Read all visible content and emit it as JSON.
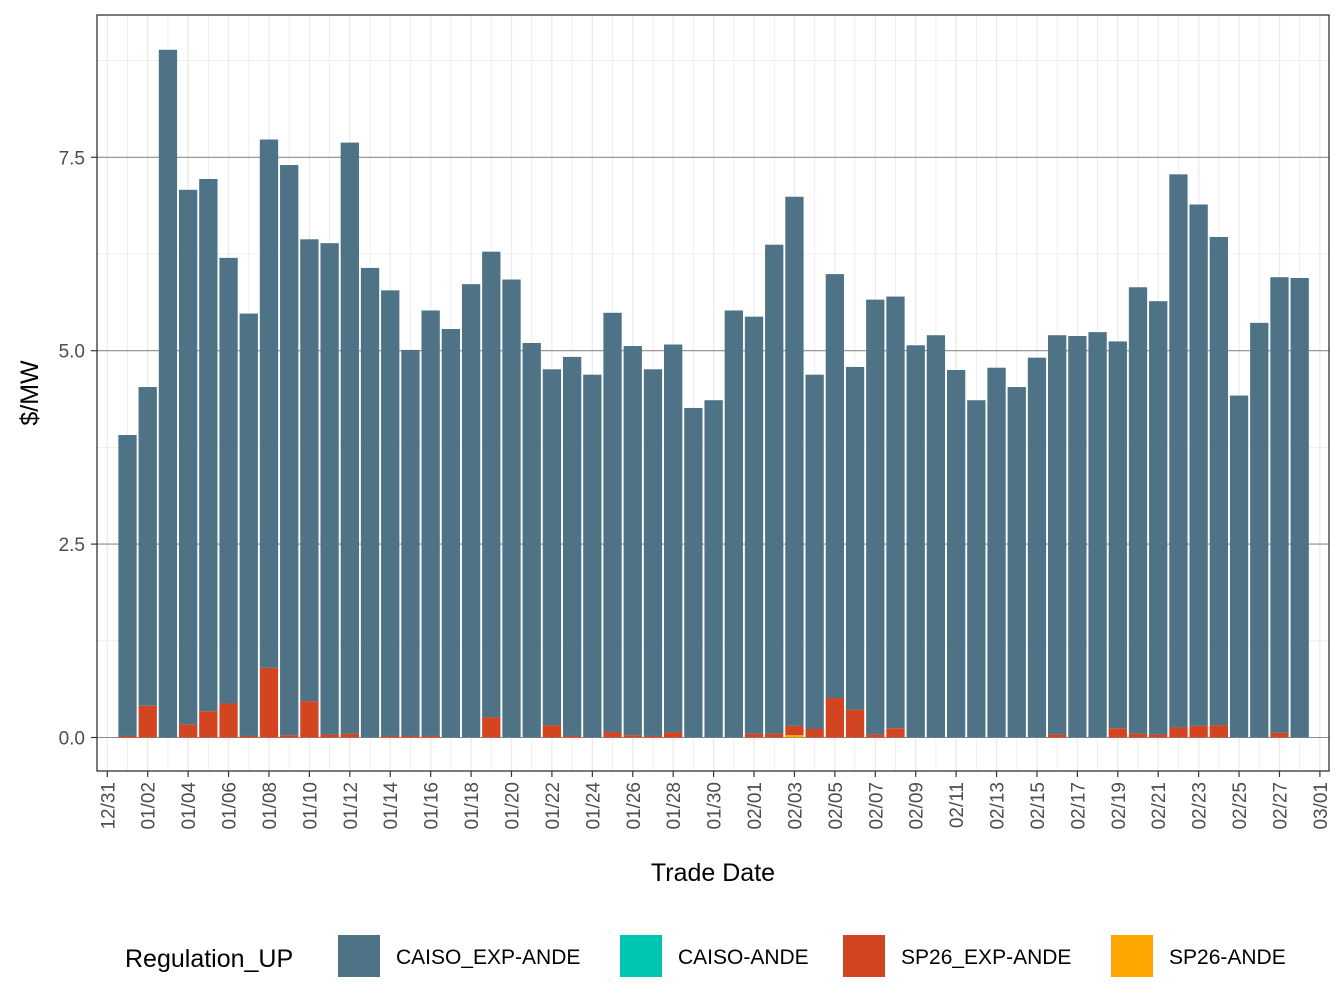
{
  "chart_data": {
    "type": "bar",
    "stacked": true,
    "xlabel": "Trade Date",
    "ylabel": "$/MW",
    "ylim": [
      -0.37,
      9.3
    ],
    "yticks": [
      0.0,
      2.5,
      5.0,
      7.5
    ],
    "ytick_labels": [
      "0.0",
      "2.5",
      "5.0",
      "7.5"
    ],
    "xticks": [
      "12/31",
      "01/02",
      "01/04",
      "01/06",
      "01/08",
      "01/10",
      "01/12",
      "01/14",
      "01/16",
      "01/18",
      "01/20",
      "01/22",
      "01/24",
      "01/26",
      "01/28",
      "01/30",
      "02/01",
      "02/03",
      "02/05",
      "02/07",
      "02/09",
      "02/11",
      "02/13",
      "02/15",
      "02/17",
      "02/19",
      "02/21",
      "02/23",
      "02/25",
      "02/27",
      "03/01"
    ],
    "grid": true,
    "legend_placement": "bottom",
    "legend": {
      "title": "Regulation_UP",
      "entries": [
        {
          "name": "CAISO_EXP-ANDE",
          "color": "#4e7387"
        },
        {
          "name": "CAISO-ANDE",
          "color": "#00c5b0"
        },
        {
          "name": "SP26_EXP-ANDE",
          "color": "#d24520"
        },
        {
          "name": "SP26-ANDE",
          "color": "#ffa500"
        }
      ]
    },
    "categories": [
      "01/01",
      "01/02",
      "01/03",
      "01/04",
      "01/05",
      "01/06",
      "01/07",
      "01/08",
      "01/09",
      "01/10",
      "01/11",
      "01/12",
      "01/13",
      "01/14",
      "01/15",
      "01/16",
      "01/17",
      "01/18",
      "01/19",
      "01/20",
      "01/21",
      "01/22",
      "01/23",
      "01/24",
      "01/25",
      "01/26",
      "01/27",
      "01/28",
      "01/29",
      "01/30",
      "01/31",
      "02/01",
      "02/02",
      "02/03",
      "02/04",
      "02/05",
      "02/06",
      "02/07",
      "02/08",
      "02/09",
      "02/10",
      "02/11",
      "02/12",
      "02/13",
      "02/14",
      "02/15",
      "02/16",
      "02/17",
      "02/18",
      "02/19",
      "02/20",
      "02/21",
      "02/22",
      "02/23",
      "02/24",
      "02/25",
      "02/26",
      "02/27",
      "02/28"
    ],
    "series": [
      {
        "name": "SP26-ANDE",
        "color": "#ffa500",
        "values": [
          0,
          0,
          0,
          0,
          0,
          0,
          0,
          0,
          0,
          0,
          0,
          0,
          0,
          0,
          0,
          0,
          0,
          0,
          0,
          0,
          0,
          0,
          0,
          0,
          0,
          0,
          0,
          0,
          0,
          0,
          0,
          0,
          0,
          0.03,
          0,
          0,
          0,
          0,
          0,
          0,
          0,
          0,
          0,
          0,
          0,
          0,
          0,
          0,
          0,
          0,
          0,
          0,
          0,
          0,
          0,
          0,
          0,
          0,
          0
        ]
      },
      {
        "name": "SP26_EXP-ANDE",
        "color": "#d24520",
        "values": [
          0.02,
          0.41,
          0,
          0.17,
          0.34,
          0.44,
          0.02,
          0.9,
          0.03,
          0.47,
          0.04,
          0.05,
          0,
          0.02,
          0.02,
          0.02,
          0,
          0,
          0.26,
          0,
          0,
          0.16,
          0.02,
          0,
          0.07,
          0.03,
          0.02,
          0.07,
          0,
          0,
          0,
          0.05,
          0.05,
          0.12,
          0.11,
          0.51,
          0.36,
          0.04,
          0.12,
          0,
          0,
          0,
          0,
          0,
          0,
          0,
          0.04,
          0,
          0,
          0.12,
          0.05,
          0.04,
          0.13,
          0.15,
          0.16,
          0,
          0,
          0.06,
          0
        ]
      },
      {
        "name": "CAISO-ANDE",
        "color": "#00c5b0",
        "values": [
          0,
          0,
          0,
          0,
          0,
          0,
          0,
          0,
          0,
          0,
          0,
          0,
          0,
          0,
          0,
          0,
          0,
          0,
          0,
          0,
          0,
          0,
          0,
          0,
          0,
          0,
          0,
          0,
          0,
          0,
          0,
          0,
          0,
          0,
          0,
          0,
          0,
          0,
          0,
          0,
          0,
          0,
          0,
          0,
          0,
          0,
          0,
          0,
          0,
          0,
          0,
          0,
          0,
          0,
          0,
          0,
          0,
          0,
          0
        ]
      },
      {
        "name": "CAISO_EXP-ANDE",
        "color": "#4e7387",
        "values": [
          3.89,
          4.12,
          8.89,
          6.91,
          6.88,
          5.76,
          5.46,
          6.83,
          7.37,
          5.97,
          6.35,
          7.64,
          6.07,
          5.76,
          4.99,
          5.5,
          5.28,
          5.86,
          6.02,
          5.92,
          5.1,
          4.6,
          4.9,
          4.69,
          5.42,
          5.03,
          4.74,
          5.01,
          4.26,
          4.36,
          5.52,
          5.39,
          6.32,
          6.84,
          4.58,
          5.48,
          4.43,
          5.62,
          5.58,
          5.07,
          5.2,
          4.75,
          4.36,
          4.78,
          4.53,
          4.91,
          5.16,
          5.19,
          5.24,
          5.0,
          5.77,
          5.6,
          7.15,
          6.74,
          6.31,
          4.42,
          5.36,
          5.89,
          5.94
        ]
      }
    ]
  }
}
